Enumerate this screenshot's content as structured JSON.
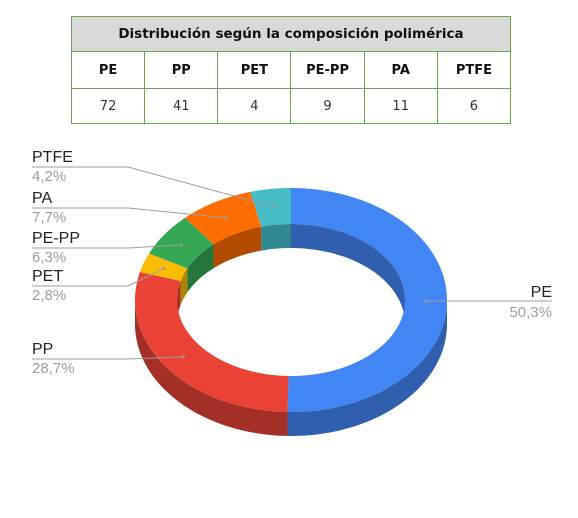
{
  "table": {
    "title": "Distribución según la composición polimérica",
    "headers": [
      "PE",
      "PP",
      "PET",
      "PE-PP",
      "PA",
      "PTFE"
    ],
    "values": [
      "72",
      "41",
      "4",
      "9",
      "11",
      "6"
    ]
  },
  "chart_data": {
    "type": "pie",
    "style": "3d-donut",
    "labels": [
      "PE",
      "PP",
      "PET",
      "PE-PP",
      "PA",
      "PTFE"
    ],
    "values": [
      72,
      41,
      4,
      9,
      11,
      6
    ],
    "percent_labels": [
      "50,3%",
      "28,7%",
      "2,8%",
      "6,3%",
      "7,7%",
      "4,2%"
    ],
    "colors": [
      "#4285f4",
      "#ea4335",
      "#fbbc04",
      "#34a853",
      "#ff6d01",
      "#46bdc6"
    ],
    "side_colors": [
      "#2f5fae",
      "#a32f26",
      "#b08400",
      "#24763a",
      "#b34c00",
      "#318890"
    ],
    "legend": "labels beside slices with leader lines"
  }
}
